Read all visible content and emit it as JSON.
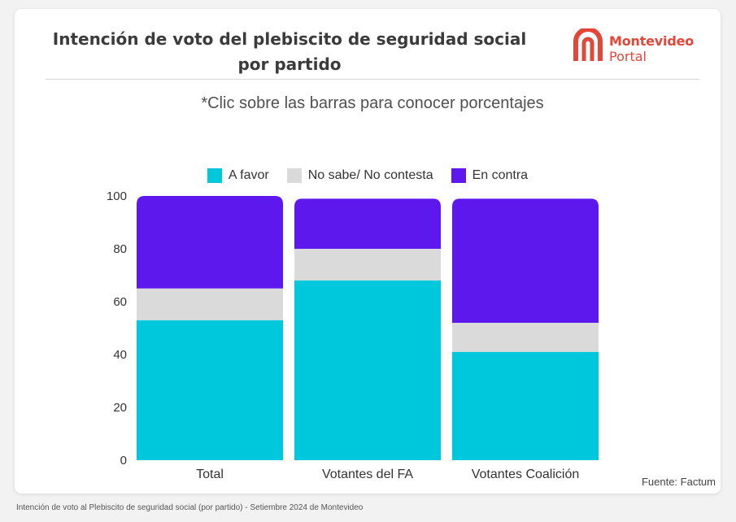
{
  "header": {
    "title": "Intención de voto del plebiscito de seguridad social por partido",
    "logo_line1": "Montevideo",
    "logo_line2": "Portal",
    "subtitle": "*Clic sobre las barras para conocer porcentajes"
  },
  "source": "Fuente: Factum",
  "footer": "Intención de voto al Plebiscito de seguridad social (por partido) - Setiembre 2024 de Montevideo",
  "colors": {
    "a_favor": "#00c8dc",
    "no_sabe": "#dadada",
    "en_contra": "#5d18ee",
    "brand": "#e2473a"
  },
  "chart_data": {
    "type": "bar",
    "stacked": true,
    "categories": [
      "Total",
      "Votantes del FA",
      "Votantes Coalición"
    ],
    "series": [
      {
        "name": "A favor",
        "values": [
          53,
          68,
          41
        ]
      },
      {
        "name": "No sabe/ No contesta",
        "values": [
          12,
          12,
          11
        ]
      },
      {
        "name": "En contra",
        "values": [
          35,
          19,
          47
        ]
      }
    ],
    "yticks": [
      0,
      20,
      40,
      60,
      80,
      100
    ],
    "ylim": [
      0,
      100
    ],
    "legend": "top-center",
    "grid": false
  }
}
